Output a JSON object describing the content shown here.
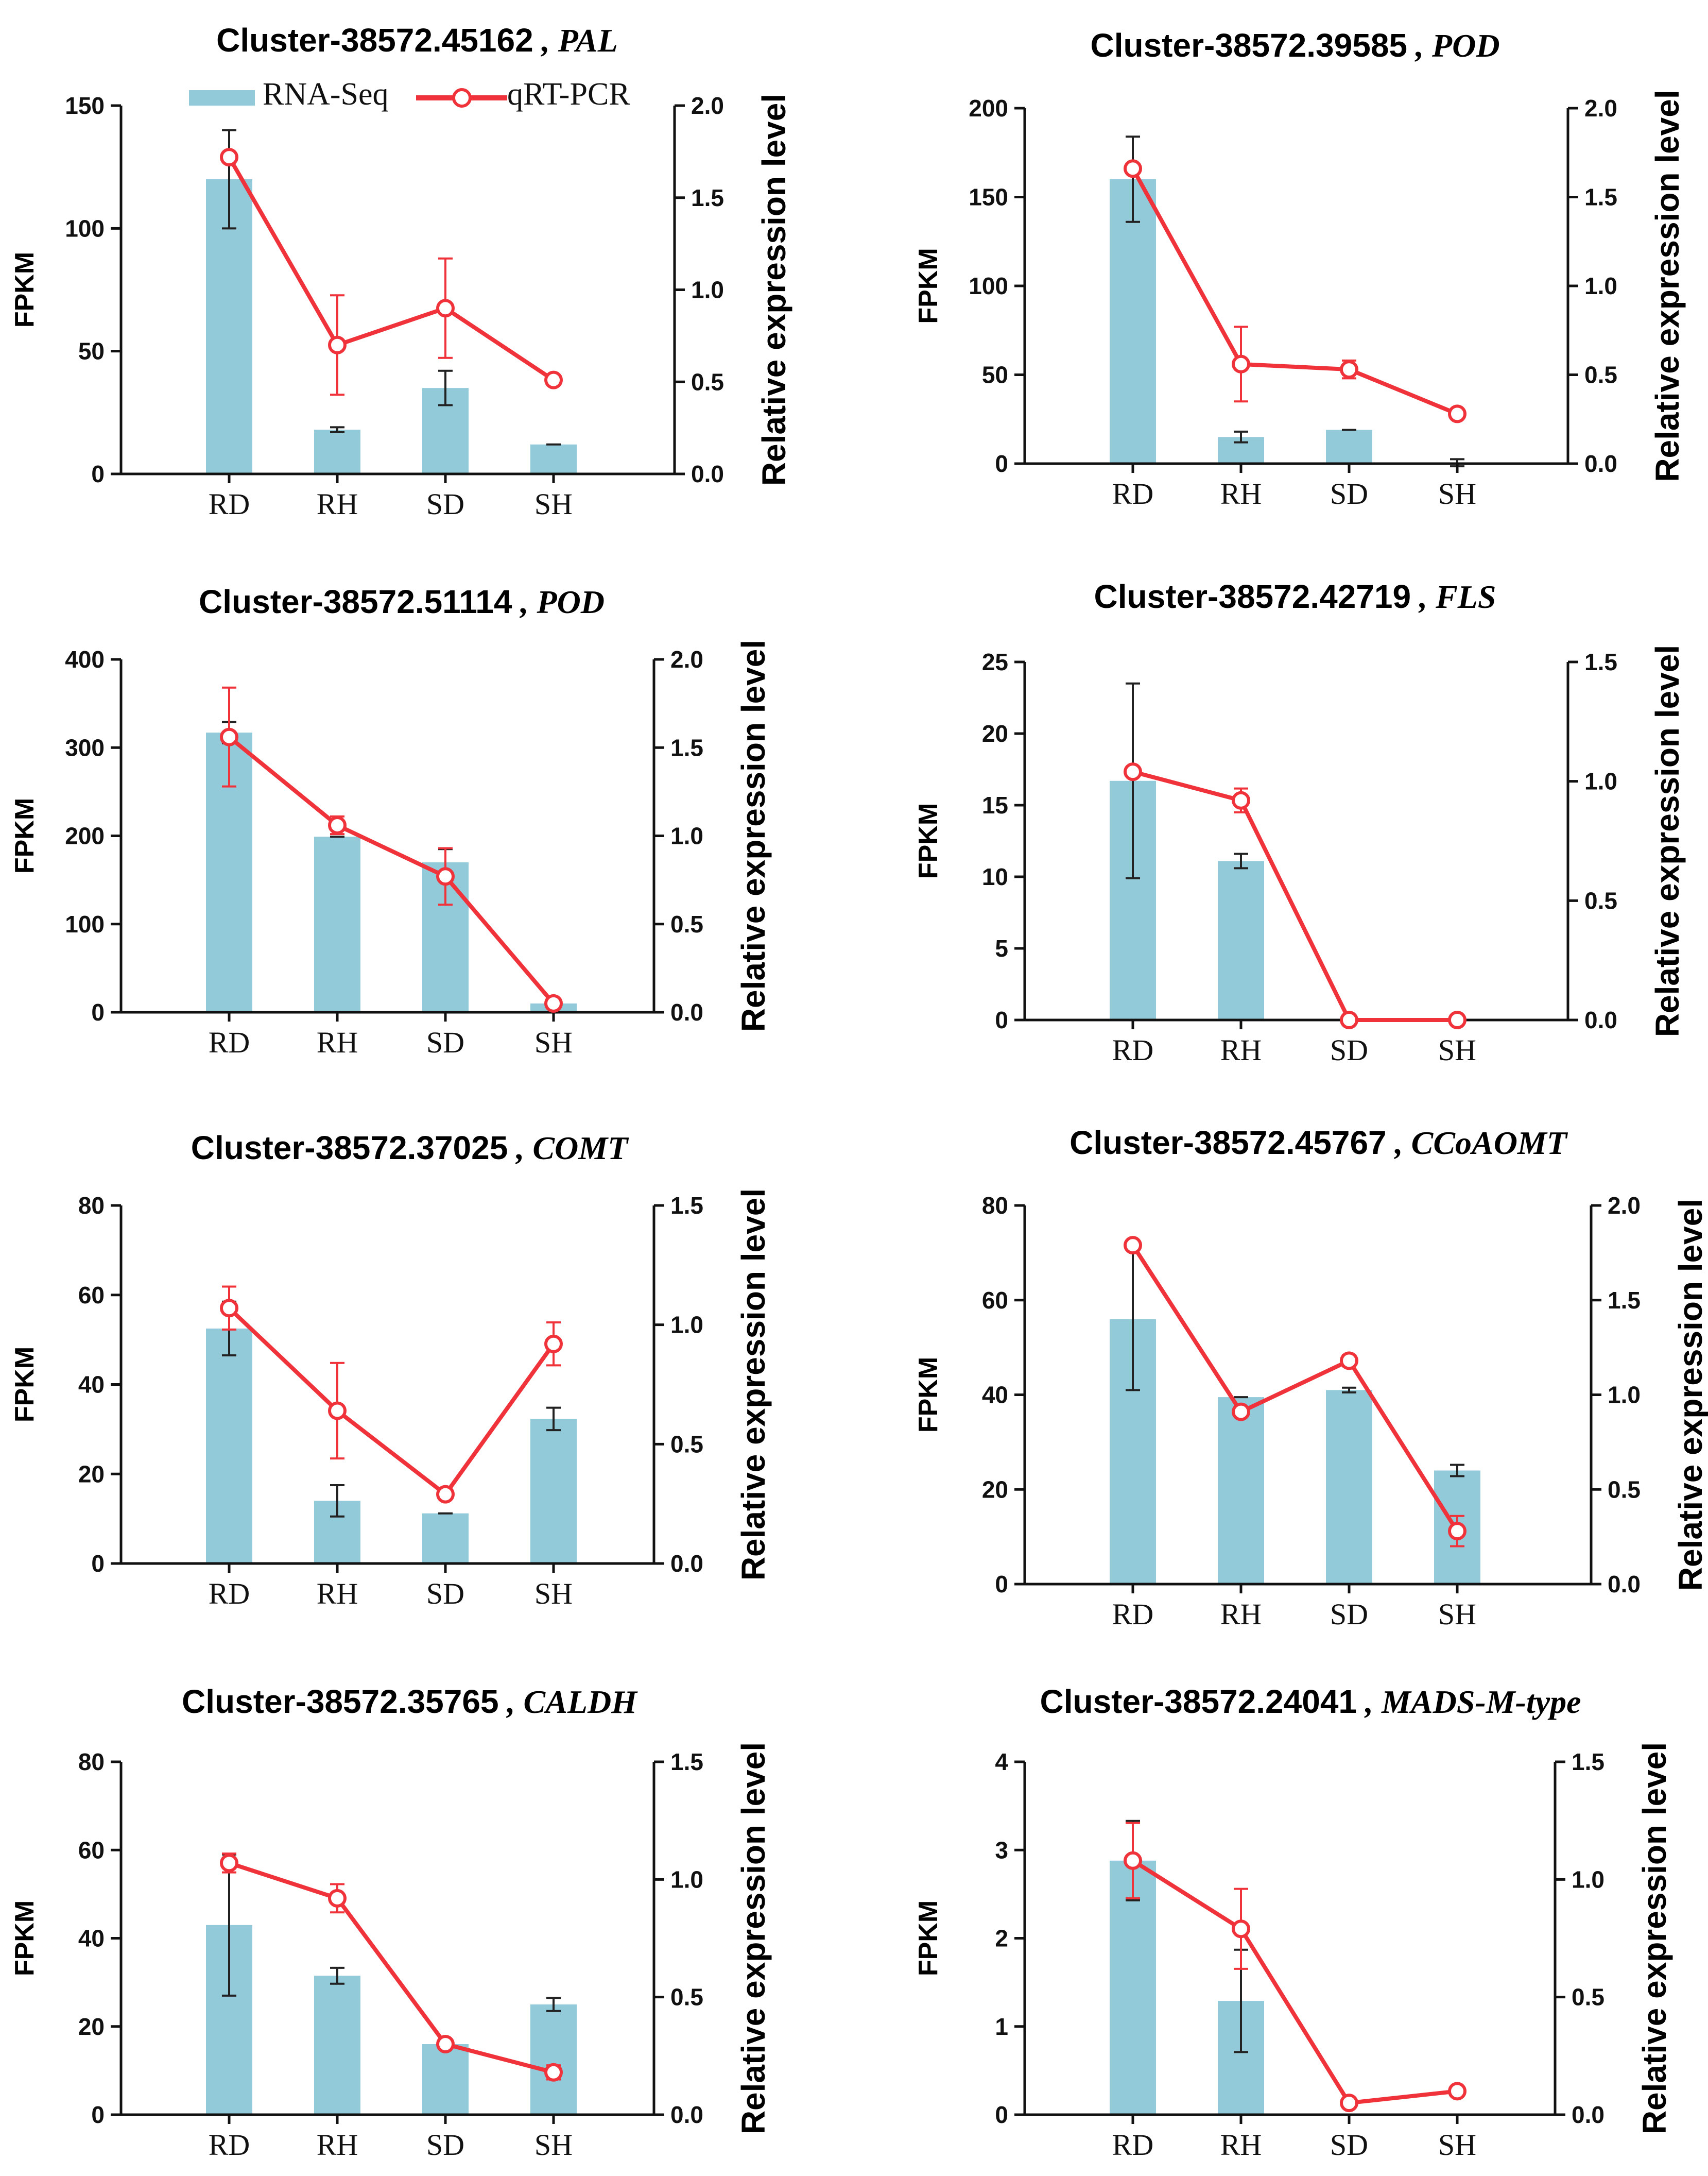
{
  "colors": {
    "bar": "#92CAD9",
    "line": "#F0333B",
    "error_bar": "#222222",
    "axis": "#111111"
  },
  "legend": {
    "bar_label": "RNA-Seq",
    "line_label": "qRT-PCR"
  },
  "chart_data": [
    {
      "type": "bar+line",
      "title_id": "Cluster-38572.45162",
      "title_sep": " , ",
      "title_gene": "PAL",
      "categories": [
        "RD",
        "RH",
        "SD",
        "SH"
      ],
      "ylabel": "FPKM",
      "y2label": "Relative expression level",
      "ylim": [
        0,
        150
      ],
      "yticks": [
        0,
        50,
        100,
        150
      ],
      "y2lim": [
        0,
        2.0
      ],
      "y2ticks": [
        "0.0",
        "0.5",
        "1.0",
        "1.5",
        "2.0"
      ],
      "series": [
        {
          "name": "RNA-Seq",
          "axis": "left",
          "values": [
            120,
            18,
            35,
            12
          ],
          "errors": [
            20,
            1,
            7,
            0
          ]
        },
        {
          "name": "qRT-PCR",
          "axis": "right",
          "values": [
            1.72,
            0.7,
            0.9,
            0.51
          ],
          "errors": [
            0,
            0.27,
            0.27,
            0.02
          ]
        }
      ]
    },
    {
      "type": "bar+line",
      "title_id": "Cluster-38572.39585",
      "title_sep": " , ",
      "title_gene": "POD",
      "categories": [
        "RD",
        "RH",
        "SD",
        "SH"
      ],
      "ylabel": "FPKM",
      "y2label": "Relative expression level",
      "ylim": [
        0,
        200
      ],
      "yticks": [
        0,
        50,
        100,
        150,
        200
      ],
      "y2lim": [
        0,
        2.0
      ],
      "y2ticks": [
        "0.0",
        "0.5",
        "1.0",
        "1.5",
        "2.0"
      ],
      "series": [
        {
          "name": "RNA-Seq",
          "axis": "left",
          "values": [
            160,
            15,
            19,
            0.5
          ],
          "errors": [
            24,
            3,
            0,
            2
          ]
        },
        {
          "name": "qRT-PCR",
          "axis": "right",
          "values": [
            1.66,
            0.56,
            0.53,
            0.28
          ],
          "errors": [
            0,
            0.21,
            0.05,
            0
          ]
        }
      ]
    },
    {
      "type": "bar+line",
      "title_id": "Cluster-38572.51114",
      "title_sep": " , ",
      "title_gene": "POD",
      "categories": [
        "RD",
        "RH",
        "SD",
        "SH"
      ],
      "ylabel": "FPKM",
      "y2label": "Relative expression level",
      "ylim": [
        0,
        400
      ],
      "yticks": [
        0,
        100,
        200,
        300,
        400
      ],
      "y2lim": [
        0,
        2.0
      ],
      "y2ticks": [
        "0.0",
        "0.5",
        "1.0",
        "1.5",
        "2.0"
      ],
      "series": [
        {
          "name": "RNA-Seq",
          "axis": "left",
          "values": [
            317,
            199,
            170,
            10
          ],
          "errors": [
            12,
            0,
            15,
            0
          ]
        },
        {
          "name": "qRT-PCR",
          "axis": "right",
          "values": [
            1.56,
            1.06,
            0.77,
            0.05
          ],
          "errors": [
            0.28,
            0.05,
            0.16,
            0
          ]
        }
      ]
    },
    {
      "type": "bar+line",
      "title_id": "Cluster-38572.42719",
      "title_sep": " , ",
      "title_gene": "FLS",
      "categories": [
        "RD",
        "RH",
        "SD",
        "SH"
      ],
      "ylabel": "FPKM",
      "y2label": "Relative expression level",
      "ylim": [
        0,
        25
      ],
      "yticks": [
        0,
        5,
        10,
        15,
        20,
        25
      ],
      "y2lim": [
        0,
        1.5
      ],
      "y2ticks": [
        "0.0",
        "0.5",
        "1.0",
        "1.5"
      ],
      "series": [
        {
          "name": "RNA-Seq",
          "axis": "left",
          "values": [
            16.7,
            11.1,
            0,
            0
          ],
          "errors": [
            6.8,
            0.5,
            0,
            0
          ]
        },
        {
          "name": "qRT-PCR",
          "axis": "right",
          "values": [
            1.04,
            0.92,
            0,
            0
          ],
          "errors": [
            0,
            0.05,
            0,
            0
          ]
        }
      ]
    },
    {
      "type": "bar+line",
      "title_id": "Cluster-38572.37025",
      "title_sep": " , ",
      "title_gene": "COMT",
      "categories": [
        "RD",
        "RH",
        "SD",
        "SH"
      ],
      "ylabel": "FPKM",
      "y2label": "Relative expression level",
      "ylim": [
        0,
        80
      ],
      "yticks": [
        0,
        20,
        40,
        60,
        80
      ],
      "y2lim": [
        0,
        1.5
      ],
      "y2ticks": [
        "0.0",
        "0.5",
        "1.0",
        "1.5"
      ],
      "series": [
        {
          "name": "RNA-Seq",
          "axis": "left",
          "values": [
            52.5,
            14,
            11.2,
            32.3
          ],
          "errors": [
            6,
            3.5,
            0,
            2.5
          ]
        },
        {
          "name": "qRT-PCR",
          "axis": "right",
          "values": [
            1.07,
            0.64,
            0.29,
            0.92
          ],
          "errors": [
            0.09,
            0.2,
            0,
            0.09
          ]
        }
      ]
    },
    {
      "type": "bar+line",
      "title_id": "Cluster-38572.45767",
      "title_sep": " , ",
      "title_gene": "CCoAOMT",
      "categories": [
        "RD",
        "RH",
        "SD",
        "SH"
      ],
      "ylabel": "FPKM",
      "y2label": "Relative expression level",
      "ylim": [
        0,
        80
      ],
      "yticks": [
        0,
        20,
        40,
        60,
        80
      ],
      "y2lim": [
        0,
        2.0
      ],
      "y2ticks": [
        "0.0",
        "0.5",
        "1.0",
        "1.5",
        "2.0"
      ],
      "series": [
        {
          "name": "RNA-Seq",
          "axis": "left",
          "values": [
            56,
            39.5,
            41,
            24
          ],
          "errors": [
            15,
            0,
            0.5,
            1.2
          ]
        },
        {
          "name": "qRT-PCR",
          "axis": "right",
          "values": [
            1.79,
            0.91,
            1.18,
            0.28
          ],
          "errors": [
            0,
            0,
            0.03,
            0.08
          ]
        }
      ]
    },
    {
      "type": "bar+line",
      "title_id": "Cluster-38572.35765",
      "title_sep": " , ",
      "title_gene": "CALDH",
      "categories": [
        "RD",
        "RH",
        "SD",
        "SH"
      ],
      "ylabel": "FPKM",
      "y2label": "Relative expression level",
      "ylim": [
        0,
        80
      ],
      "yticks": [
        0,
        20,
        40,
        60,
        80
      ],
      "y2lim": [
        0,
        1.5
      ],
      "y2ticks": [
        "0.0",
        "0.5",
        "1.0",
        "1.5"
      ],
      "series": [
        {
          "name": "RNA-Seq",
          "axis": "left",
          "values": [
            43,
            31.5,
            16,
            25
          ],
          "errors": [
            16,
            1.8,
            0,
            1.5
          ]
        },
        {
          "name": "qRT-PCR",
          "axis": "right",
          "values": [
            1.07,
            0.92,
            0.3,
            0.18
          ],
          "errors": [
            0.04,
            0.06,
            0,
            0.03
          ]
        }
      ]
    },
    {
      "type": "bar+line",
      "title_id": "Cluster-38572.24041",
      "title_sep": " , ",
      "title_gene": "MADS-M-type",
      "categories": [
        "RD",
        "RH",
        "SD",
        "SH"
      ],
      "ylabel": "FPKM",
      "y2label": "Relative expression level",
      "ylim": [
        0,
        4
      ],
      "yticks": [
        0,
        1,
        2,
        3,
        4
      ],
      "y2lim": [
        0,
        1.5
      ],
      "y2ticks": [
        "0.0",
        "0.5",
        "1.0",
        "1.5"
      ],
      "series": [
        {
          "name": "RNA-Seq",
          "axis": "left",
          "values": [
            2.88,
            1.29,
            0,
            0
          ],
          "errors": [
            0.45,
            0.58,
            0,
            0
          ]
        },
        {
          "name": "qRT-PCR",
          "axis": "right",
          "values": [
            1.08,
            0.79,
            0.05,
            0.1
          ],
          "errors": [
            0.16,
            0.17,
            0,
            0
          ]
        }
      ]
    }
  ]
}
